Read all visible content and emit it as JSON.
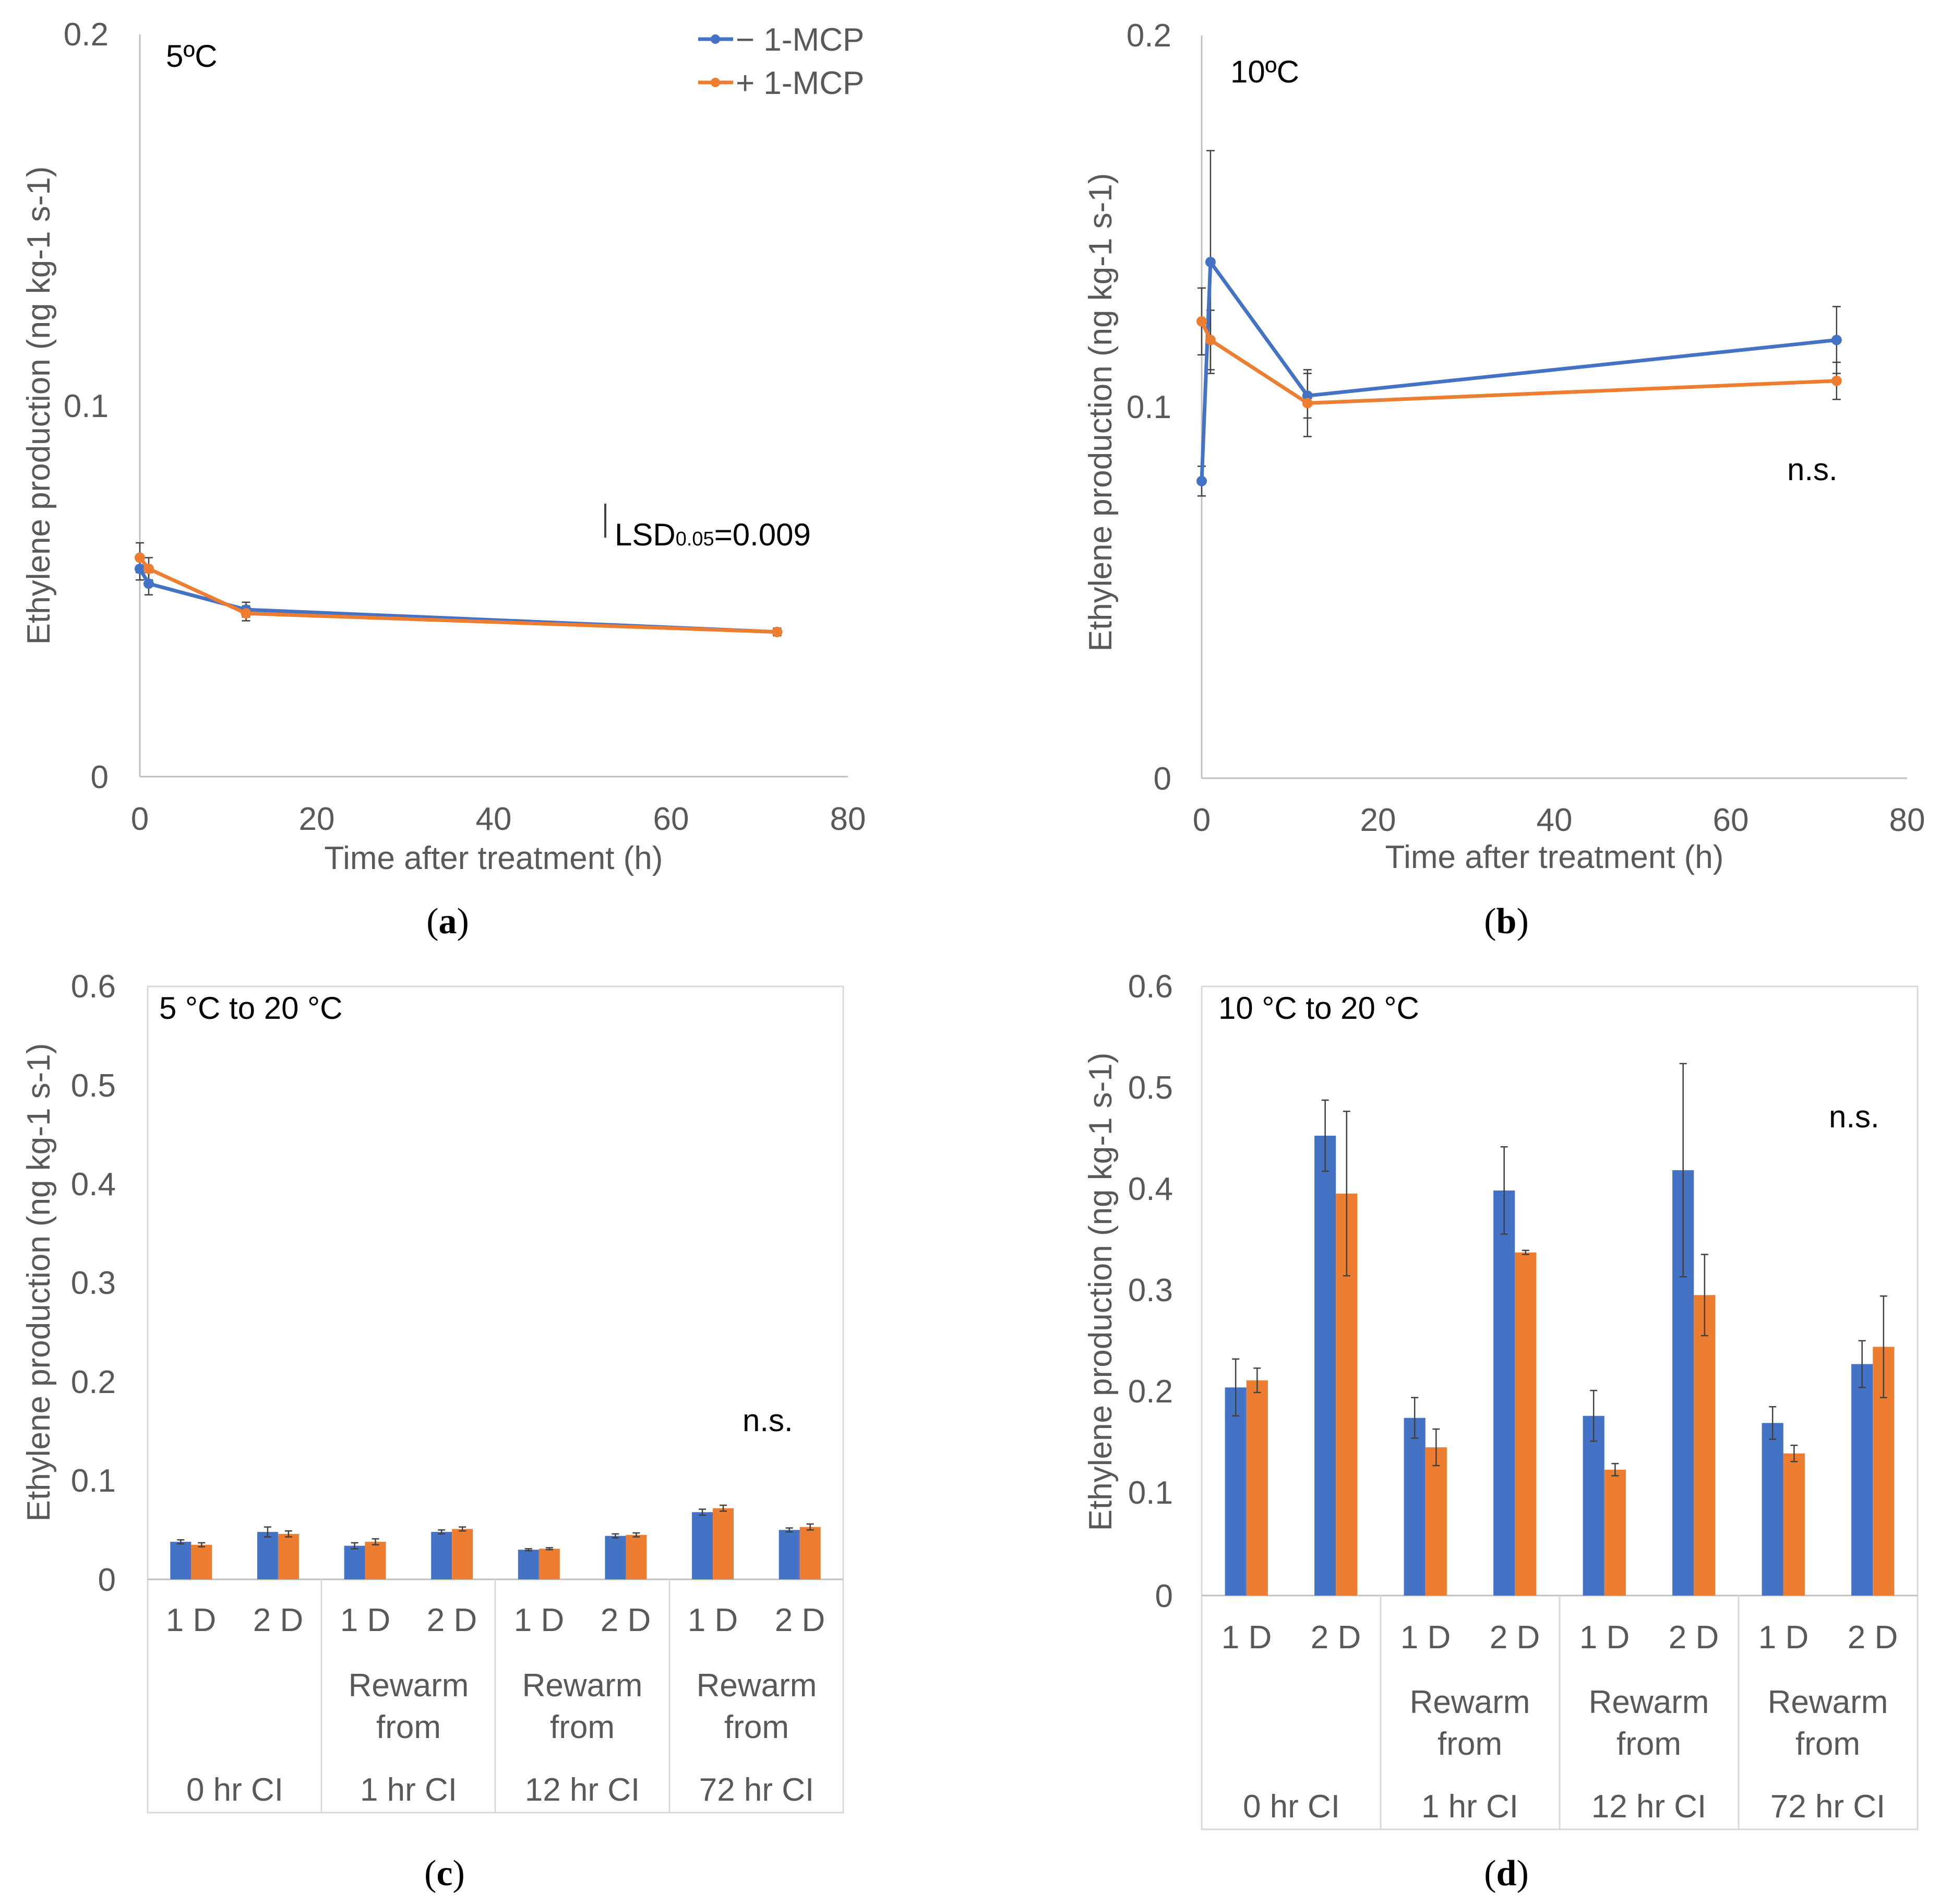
{
  "colors": {
    "minus": "#4472C4",
    "plus": "#ED7D31",
    "axis": "#bfbfbf",
    "text": "#595959",
    "err": "#404040"
  },
  "legend": {
    "minus": "− 1-MCP",
    "plus": "+ 1-MCP"
  },
  "chart_data": [
    {
      "type": "line",
      "caption": "a",
      "title": "5ºC",
      "xlabel": "Time after treatment (h)",
      "ylabel": "Ethylene production (ng kg-1 s-1)",
      "xlim": [
        0,
        80
      ],
      "ylim": [
        0,
        0.2
      ],
      "xticks": [
        "0",
        "20",
        "40",
        "60",
        "80"
      ],
      "yticks": [
        "0",
        "0.1",
        "0.2"
      ],
      "annotation": "LSD0.05=0.009",
      "annotation_main": "LSD",
      "annotation_sub": "0.05",
      "annotation_tail": "=0.009",
      "series": [
        {
          "name": "− 1-MCP",
          "x": [
            0,
            1,
            12,
            72
          ],
          "y": [
            0.056,
            0.052,
            0.045,
            0.039
          ],
          "err": [
            0.003,
            0.003,
            0.002,
            0.001
          ]
        },
        {
          "name": "+ 1-MCP",
          "x": [
            0,
            1,
            12,
            72
          ],
          "y": [
            0.059,
            0.056,
            0.044,
            0.039
          ],
          "err": [
            0.004,
            0.003,
            0.002,
            0.001
          ]
        }
      ]
    },
    {
      "type": "line",
      "caption": "b",
      "title": "10ºC",
      "xlabel": "Time after treatment (h)",
      "ylabel": "Ethylene production (ng kg-1 s-1)",
      "xlim": [
        0,
        80
      ],
      "ylim": [
        0,
        0.2
      ],
      "xticks": [
        "0",
        "20",
        "40",
        "60",
        "80"
      ],
      "yticks": [
        "0",
        "0.1",
        "0.2"
      ],
      "annotation": "n.s.",
      "series": [
        {
          "name": "− 1-MCP",
          "x": [
            0,
            1,
            12,
            72
          ],
          "y": [
            0.08,
            0.139,
            0.103,
            0.118
          ],
          "err": [
            0.004,
            0.03,
            0.006,
            0.009
          ]
        },
        {
          "name": "+ 1-MCP",
          "x": [
            0,
            1,
            12,
            72
          ],
          "y": [
            0.123,
            0.118,
            0.101,
            0.107
          ],
          "err": [
            0.009,
            0.008,
            0.009,
            0.005
          ]
        }
      ]
    },
    {
      "type": "bar",
      "caption": "c",
      "title": "5 °C to 20 °C",
      "ylabel": "Ethylene production (ng kg-1 s-1)",
      "ylim": [
        0,
        0.6
      ],
      "yticks": [
        "0",
        "0.1",
        "0.2",
        "0.3",
        "0.4",
        "0.5",
        "0.6"
      ],
      "annotation": "n.s.",
      "categories": [
        "1 D",
        "2 D",
        "1 D",
        "2 D",
        "1 D",
        "2 D",
        "1 D",
        "2 D"
      ],
      "groups": [
        {
          "line1": "",
          "line2": "",
          "line3": "0 hr CI"
        },
        {
          "line1": "Rewarm",
          "line2": "from",
          "line3": "1 hr CI"
        },
        {
          "line1": "Rewarm",
          "line2": "from",
          "line3": "12 hr CI"
        },
        {
          "line1": "Rewarm",
          "line2": "from",
          "line3": "72 hr CI"
        }
      ],
      "series": [
        {
          "name": "− 1-MCP",
          "values": [
            0.038,
            0.048,
            0.034,
            0.048,
            0.03,
            0.044,
            0.068,
            0.05
          ],
          "err": [
            0.002,
            0.005,
            0.003,
            0.002,
            0.001,
            0.002,
            0.003,
            0.002
          ]
        },
        {
          "name": "+ 1-MCP",
          "values": [
            0.035,
            0.046,
            0.038,
            0.051,
            0.031,
            0.045,
            0.072,
            0.053
          ],
          "err": [
            0.002,
            0.003,
            0.003,
            0.002,
            0.001,
            0.002,
            0.003,
            0.003
          ]
        }
      ]
    },
    {
      "type": "bar",
      "caption": "d",
      "title": "10 °C to 20 °C",
      "ylabel": "Ethylene production (ng kg-1 s-1)",
      "ylim": [
        0,
        0.6
      ],
      "yticks": [
        "0",
        "0.1",
        "0.2",
        "0.3",
        "0.4",
        "0.5",
        "0.6"
      ],
      "annotation": "n.s.",
      "categories": [
        "1 D",
        "2 D",
        "1 D",
        "2 D",
        "1 D",
        "2 D",
        "1 D",
        "2 D"
      ],
      "groups": [
        {
          "line1": "",
          "line2": "",
          "line3": "0 hr CI"
        },
        {
          "line1": "Rewarm",
          "line2": "from",
          "line3": "1 hr CI"
        },
        {
          "line1": "Rewarm",
          "line2": "from",
          "line3": "12 hr CI"
        },
        {
          "line1": "Rewarm",
          "line2": "from",
          "line3": "72 hr CI"
        }
      ],
      "series": [
        {
          "name": "− 1-MCP",
          "values": [
            0.205,
            0.453,
            0.175,
            0.399,
            0.177,
            0.419,
            0.17,
            0.228
          ],
          "err": [
            0.028,
            0.035,
            0.02,
            0.043,
            0.025,
            0.105,
            0.016,
            0.023
          ]
        },
        {
          "name": "+ 1-MCP",
          "values": [
            0.212,
            0.396,
            0.146,
            0.338,
            0.124,
            0.296,
            0.14,
            0.245
          ],
          "err": [
            0.012,
            0.081,
            0.018,
            0.002,
            0.006,
            0.04,
            0.008,
            0.05
          ]
        }
      ]
    }
  ]
}
